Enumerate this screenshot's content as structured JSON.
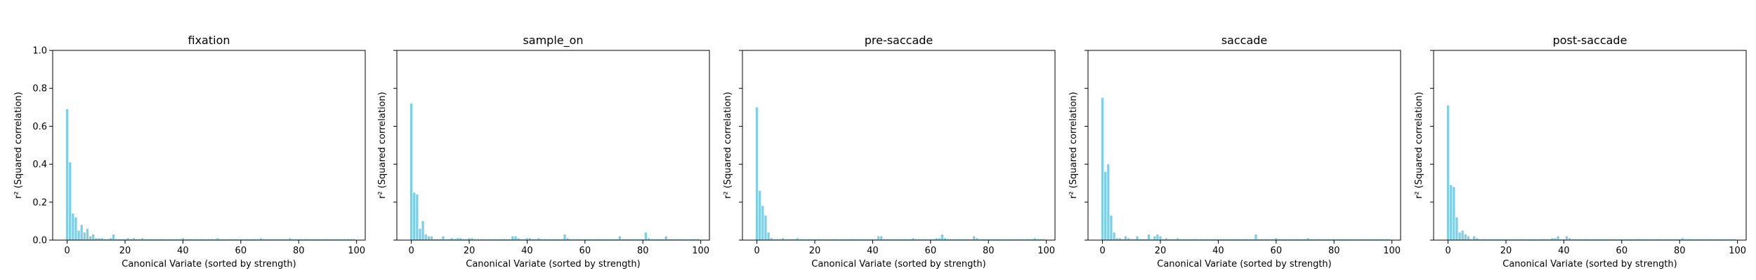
{
  "figure": {
    "xlabel": "Canonical Variate (sorted by strength)",
    "ylabel": "r² (Squared correlation)",
    "bar_color": "#7ecfe6",
    "ylim": [
      0,
      1.0
    ],
    "xlim": [
      -5,
      103
    ],
    "yticks": [
      0.0,
      0.2,
      0.4,
      0.6,
      0.8,
      1.0
    ],
    "ytick_labels": [
      "0.0",
      "0.2",
      "0.4",
      "0.6",
      "0.8",
      "1.0"
    ],
    "xticks": [
      0,
      20,
      40,
      60,
      80,
      100
    ],
    "xtick_labels": [
      "0",
      "20",
      "40",
      "60",
      "80",
      "100"
    ]
  },
  "chart_data": [
    {
      "type": "bar",
      "title": "fixation",
      "x": [
        0,
        1,
        2,
        3,
        4,
        5,
        6,
        7,
        8,
        9,
        10,
        11,
        12,
        13,
        14,
        15,
        16,
        17,
        18,
        19,
        20,
        21,
        22,
        23,
        24,
        25,
        26,
        27,
        28,
        29,
        30,
        31,
        32,
        33,
        34,
        35,
        36,
        37,
        38,
        39,
        40,
        41,
        42,
        43,
        44,
        45,
        46,
        47,
        48,
        49,
        50,
        51,
        52,
        53,
        54,
        55,
        56,
        57,
        58,
        59,
        60,
        61,
        62,
        63,
        64,
        65,
        66,
        67,
        68,
        69,
        70,
        71,
        72,
        73,
        74,
        75,
        76,
        77,
        78,
        79,
        80,
        81,
        82,
        83,
        84,
        85,
        86,
        87,
        88,
        89,
        90,
        91,
        92,
        93,
        94,
        95,
        96,
        97,
        98,
        99
      ],
      "values": [
        0.69,
        0.41,
        0.14,
        0.12,
        0.05,
        0.08,
        0.04,
        0.06,
        0.02,
        0.03,
        0.01,
        0.01,
        0.01,
        0.005,
        0.005,
        0.01,
        0.03,
        0.005,
        0.005,
        0.005,
        0.005,
        0.01,
        0.005,
        0.01,
        0.005,
        0.005,
        0.01,
        0.005,
        0.005,
        0.005,
        0.005,
        0.005,
        0.005,
        0.005,
        0.005,
        0.005,
        0.005,
        0.005,
        0.005,
        0.005,
        0.01,
        0.005,
        0.005,
        0.005,
        0.005,
        0.005,
        0.005,
        0.005,
        0.005,
        0.005,
        0.005,
        0.005,
        0.01,
        0.005,
        0.005,
        0.005,
        0.005,
        0.005,
        0.005,
        0.005,
        0.005,
        0.005,
        0.005,
        0.005,
        0.005,
        0.005,
        0.005,
        0.01,
        0.005,
        0.005,
        0.005,
        0.005,
        0.005,
        0.005,
        0.005,
        0.005,
        0.005,
        0.01,
        0.005,
        0.005,
        0.005,
        0.005,
        0.005,
        0.005,
        0.005,
        0.005,
        0.005,
        0.005,
        0.005,
        0.005,
        0.005,
        0.005,
        0.005,
        0.005,
        0.005,
        0.005,
        0.005,
        0.005,
        0.005,
        0.005
      ]
    },
    {
      "type": "bar",
      "title": "sample_on",
      "x": [
        0,
        1,
        2,
        3,
        4,
        5,
        6,
        7,
        8,
        9,
        10,
        11,
        12,
        13,
        14,
        15,
        16,
        17,
        18,
        19,
        20,
        21,
        22,
        23,
        24,
        25,
        26,
        27,
        28,
        29,
        30,
        31,
        32,
        33,
        34,
        35,
        36,
        37,
        38,
        39,
        40,
        41,
        42,
        43,
        44,
        45,
        46,
        47,
        48,
        49,
        50,
        51,
        52,
        53,
        54,
        55,
        56,
        57,
        58,
        59,
        60,
        61,
        62,
        63,
        64,
        65,
        66,
        67,
        68,
        69,
        70,
        71,
        72,
        73,
        74,
        75,
        76,
        77,
        78,
        79,
        80,
        81,
        82,
        83,
        84,
        85,
        86,
        87,
        88,
        89,
        90,
        91,
        92,
        93,
        94,
        95,
        96,
        97,
        98,
        99
      ],
      "values": [
        0.72,
        0.25,
        0.24,
        0.06,
        0.1,
        0.03,
        0.02,
        0.02,
        0.005,
        0.005,
        0.005,
        0.02,
        0.005,
        0.005,
        0.01,
        0.005,
        0.01,
        0.01,
        0.005,
        0.005,
        0.01,
        0.01,
        0.005,
        0.005,
        0.005,
        0.005,
        0.005,
        0.005,
        0.005,
        0.005,
        0.005,
        0.005,
        0.005,
        0.005,
        0.005,
        0.02,
        0.02,
        0.01,
        0.005,
        0.005,
        0.01,
        0.01,
        0.005,
        0.005,
        0.01,
        0.005,
        0.005,
        0.005,
        0.005,
        0.005,
        0.005,
        0.005,
        0.005,
        0.03,
        0.01,
        0.005,
        0.005,
        0.005,
        0.005,
        0.005,
        0.005,
        0.005,
        0.005,
        0.005,
        0.005,
        0.005,
        0.005,
        0.005,
        0.005,
        0.005,
        0.005,
        0.005,
        0.02,
        0.005,
        0.005,
        0.005,
        0.005,
        0.005,
        0.005,
        0.005,
        0.005,
        0.04,
        0.01,
        0.005,
        0.005,
        0.005,
        0.005,
        0.005,
        0.02,
        0.005,
        0.005,
        0.005,
        0.005,
        0.005,
        0.005,
        0.005,
        0.005,
        0.005,
        0.005,
        0.005
      ]
    },
    {
      "type": "bar",
      "title": "pre-saccade",
      "x": [
        0,
        1,
        2,
        3,
        4,
        5,
        6,
        7,
        8,
        9,
        10,
        11,
        12,
        13,
        14,
        15,
        16,
        17,
        18,
        19,
        20,
        21,
        22,
        23,
        24,
        25,
        26,
        27,
        28,
        29,
        30,
        31,
        32,
        33,
        34,
        35,
        36,
        37,
        38,
        39,
        40,
        41,
        42,
        43,
        44,
        45,
        46,
        47,
        48,
        49,
        50,
        51,
        52,
        53,
        54,
        55,
        56,
        57,
        58,
        59,
        60,
        61,
        62,
        63,
        64,
        65,
        66,
        67,
        68,
        69,
        70,
        71,
        72,
        73,
        74,
        75,
        76,
        77,
        78,
        79,
        80,
        81,
        82,
        83,
        84,
        85,
        86,
        87,
        88,
        89,
        90,
        91,
        92,
        93,
        94,
        95,
        96,
        97,
        98,
        99
      ],
      "values": [
        0.7,
        0.26,
        0.18,
        0.13,
        0.04,
        0.01,
        0.005,
        0.005,
        0.005,
        0.01,
        0.005,
        0.005,
        0.005,
        0.005,
        0.01,
        0.005,
        0.005,
        0.005,
        0.005,
        0.005,
        0.005,
        0.005,
        0.005,
        0.005,
        0.005,
        0.005,
        0.005,
        0.005,
        0.005,
        0.005,
        0.005,
        0.005,
        0.005,
        0.005,
        0.005,
        0.005,
        0.005,
        0.005,
        0.005,
        0.005,
        0.005,
        0.005,
        0.02,
        0.02,
        0.005,
        0.005,
        0.005,
        0.005,
        0.005,
        0.005,
        0.005,
        0.005,
        0.005,
        0.005,
        0.01,
        0.005,
        0.005,
        0.005,
        0.005,
        0.005,
        0.005,
        0.005,
        0.01,
        0.01,
        0.03,
        0.01,
        0.005,
        0.005,
        0.005,
        0.005,
        0.005,
        0.005,
        0.005,
        0.005,
        0.005,
        0.02,
        0.01,
        0.005,
        0.005,
        0.005,
        0.005,
        0.005,
        0.005,
        0.005,
        0.005,
        0.005,
        0.005,
        0.005,
        0.005,
        0.005,
        0.005,
        0.005,
        0.005,
        0.005,
        0.005,
        0.005,
        0.01,
        0.005,
        0.005,
        0.005
      ]
    },
    {
      "type": "bar",
      "title": "saccade",
      "x": [
        0,
        1,
        2,
        3,
        4,
        5,
        6,
        7,
        8,
        9,
        10,
        11,
        12,
        13,
        14,
        15,
        16,
        17,
        18,
        19,
        20,
        21,
        22,
        23,
        24,
        25,
        26,
        27,
        28,
        29,
        30,
        31,
        32,
        33,
        34,
        35,
        36,
        37,
        38,
        39,
        40,
        41,
        42,
        43,
        44,
        45,
        46,
        47,
        48,
        49,
        50,
        51,
        52,
        53,
        54,
        55,
        56,
        57,
        58,
        59,
        60,
        61,
        62,
        63,
        64,
        65,
        66,
        67,
        68,
        69,
        70,
        71,
        72,
        73,
        74,
        75,
        76,
        77,
        78,
        79,
        80,
        81,
        82,
        83,
        84,
        85,
        86,
        87,
        88,
        89,
        90,
        91,
        92,
        93,
        94,
        95,
        96,
        97,
        98,
        99
      ],
      "values": [
        0.75,
        0.36,
        0.4,
        0.13,
        0.04,
        0.01,
        0.01,
        0.005,
        0.02,
        0.01,
        0.005,
        0.005,
        0.02,
        0.005,
        0.005,
        0.005,
        0.03,
        0.005,
        0.02,
        0.03,
        0.02,
        0.005,
        0.01,
        0.005,
        0.005,
        0.005,
        0.01,
        0.005,
        0.005,
        0.005,
        0.005,
        0.005,
        0.005,
        0.005,
        0.005,
        0.005,
        0.005,
        0.005,
        0.005,
        0.005,
        0.005,
        0.005,
        0.005,
        0.005,
        0.005,
        0.005,
        0.005,
        0.005,
        0.005,
        0.005,
        0.005,
        0.005,
        0.005,
        0.03,
        0.005,
        0.005,
        0.005,
        0.005,
        0.005,
        0.005,
        0.01,
        0.005,
        0.005,
        0.005,
        0.005,
        0.005,
        0.005,
        0.005,
        0.005,
        0.005,
        0.005,
        0.01,
        0.005,
        0.005,
        0.005,
        0.005,
        0.005,
        0.005,
        0.005,
        0.005,
        0.005,
        0.005,
        0.005,
        0.005,
        0.005,
        0.005,
        0.005,
        0.005,
        0.005,
        0.005,
        0.005,
        0.005,
        0.005,
        0.005,
        0.005,
        0.005,
        0.005,
        0.005,
        0.005,
        0.005
      ]
    },
    {
      "type": "bar",
      "title": "post-saccade",
      "x": [
        0,
        1,
        2,
        3,
        4,
        5,
        6,
        7,
        8,
        9,
        10,
        11,
        12,
        13,
        14,
        15,
        16,
        17,
        18,
        19,
        20,
        21,
        22,
        23,
        24,
        25,
        26,
        27,
        28,
        29,
        30,
        31,
        32,
        33,
        34,
        35,
        36,
        37,
        38,
        39,
        40,
        41,
        42,
        43,
        44,
        45,
        46,
        47,
        48,
        49,
        50,
        51,
        52,
        53,
        54,
        55,
        56,
        57,
        58,
        59,
        60,
        61,
        62,
        63,
        64,
        65,
        66,
        67,
        68,
        69,
        70,
        71,
        72,
        73,
        74,
        75,
        76,
        77,
        78,
        79,
        80,
        81,
        82,
        83,
        84,
        85,
        86,
        87,
        88,
        89,
        90,
        91,
        92,
        93,
        94,
        95,
        96,
        97,
        98,
        99
      ],
      "values": [
        0.71,
        0.29,
        0.28,
        0.12,
        0.04,
        0.05,
        0.03,
        0.02,
        0.005,
        0.02,
        0.01,
        0.005,
        0.005,
        0.005,
        0.005,
        0.005,
        0.005,
        0.005,
        0.005,
        0.005,
        0.005,
        0.005,
        0.005,
        0.005,
        0.005,
        0.005,
        0.005,
        0.005,
        0.005,
        0.005,
        0.005,
        0.005,
        0.005,
        0.005,
        0.005,
        0.005,
        0.01,
        0.01,
        0.02,
        0.005,
        0.005,
        0.02,
        0.01,
        0.005,
        0.005,
        0.005,
        0.005,
        0.005,
        0.005,
        0.005,
        0.005,
        0.005,
        0.005,
        0.005,
        0.005,
        0.005,
        0.005,
        0.005,
        0.005,
        0.005,
        0.005,
        0.005,
        0.005,
        0.005,
        0.005,
        0.005,
        0.005,
        0.005,
        0.005,
        0.005,
        0.005,
        0.005,
        0.005,
        0.005,
        0.005,
        0.005,
        0.005,
        0.005,
        0.005,
        0.005,
        0.005,
        0.01,
        0.005,
        0.005,
        0.005,
        0.005,
        0.005,
        0.005,
        0.005,
        0.005,
        0.005,
        0.005,
        0.005,
        0.005,
        0.005,
        0.005,
        0.005,
        0.005,
        0.005,
        0.005
      ]
    }
  ]
}
